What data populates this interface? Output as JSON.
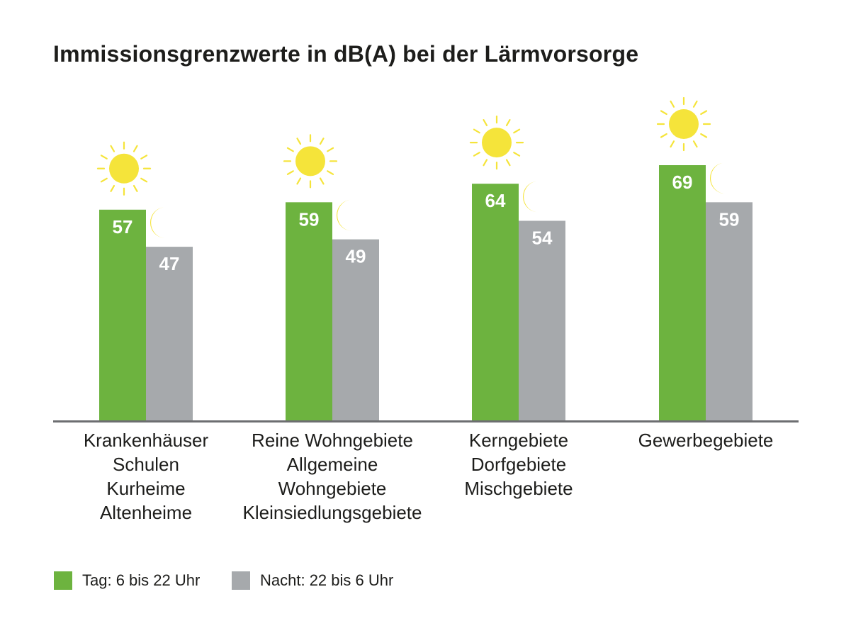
{
  "chart_data": {
    "type": "bar",
    "title": "Immissionsgrenzwerte in dB(A) bei der Lärmvorsorge",
    "unit": "dB(A)",
    "categories": [
      [
        "Krankenhäuser",
        "Schulen",
        "Kurheime",
        "Altenheime"
      ],
      [
        "Reine Wohngebiete",
        "Allgemeine",
        "Wohngebiete",
        "Kleinsiedlungsgebiete"
      ],
      [
        "Kerngebiete",
        "Dorfgebiete",
        "Mischgebiete"
      ],
      [
        "Gewerbegebiete"
      ]
    ],
    "series": [
      {
        "name": "Tag: 6 bis 22 Uhr",
        "values": [
          57,
          59,
          64,
          69
        ],
        "color": "#6db33f",
        "icon": "sun-icon"
      },
      {
        "name": "Nacht: 22 bis 6 Uhr",
        "values": [
          47,
          49,
          54,
          59
        ],
        "color": "#a6a9ac",
        "icon": "moon-icon"
      }
    ],
    "ylim": [
      0,
      69
    ],
    "grid": false,
    "data_labels": true,
    "legend_position": "bottom-left",
    "label_color": "#ffffff",
    "baseline_color": "#6d6e71",
    "icon_color": "#f5e43a"
  }
}
